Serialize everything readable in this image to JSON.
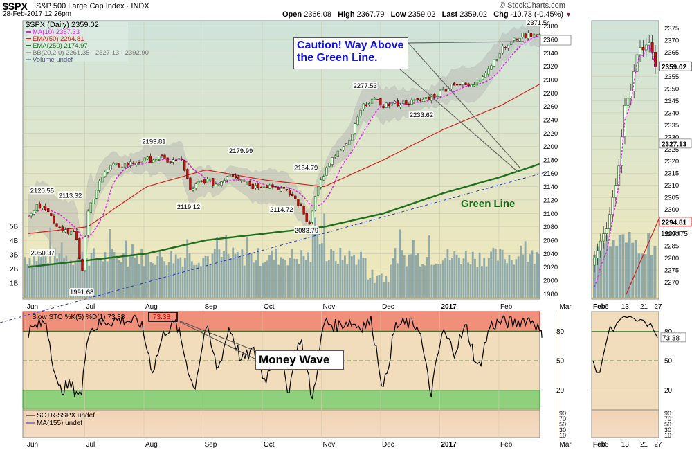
{
  "header": {
    "symbol": "$SPX",
    "description": "S&P 500 Large Cap Index",
    "exchange": "INDX",
    "date_time": "28-Feb-2017 12:26pm",
    "open_label": "Open",
    "open": "2366.08",
    "high_label": "High",
    "high": "2367.79",
    "low_label": "Low",
    "low": "2359.02",
    "last_label": "Last",
    "last": "2359.02",
    "chg_label": "Chg",
    "chg": "-10.73 (-0.45%)",
    "attribution": "© StockCharts.com"
  },
  "legend": {
    "title": "$SPX (Daily) 2359.02",
    "ma10": "MA(10) 2357.33",
    "ema50": "EMA(50) 2294.81",
    "ema250": "EMA(250) 2174.97",
    "bb": "BB(20,2.0) 2261.35 - 2327.13 - 2392.90",
    "volume": "Volume undef"
  },
  "colors": {
    "candle_up": "#1a7a1a",
    "candle_down": "#cc1111",
    "ma10": "#e020e0",
    "ema50": "#d42020",
    "ema250": "#1f6e1f",
    "bb_fill": "#b4b4b4",
    "volume": "#7f9ea6",
    "upper_panel_bg": "#eee8bc",
    "sto_upper_band": "#f0907a",
    "sto_lower_band": "#8ed07c",
    "sto_bg": "#f1dcbb"
  },
  "annotations": {
    "caution": [
      "Caution! Way Above",
      "the Green Line."
    ],
    "green_line": "Green Line",
    "money_wave": "Money Wave"
  },
  "price_labels": [
    "2371.54",
    "2277.53",
    "2233.62",
    "2193.81",
    "2179.99",
    "2154.79",
    "2120.55",
    "2113.32",
    "2119.12",
    "2114.72",
    "2083.79",
    "2050.37",
    "1991.68"
  ],
  "price_label_values": [
    2371.54,
    2277.53,
    2233.62,
    2193.81,
    2179.99,
    2154.79,
    2120.55,
    2113.32,
    2119.12,
    2114.72,
    2083.79,
    2050.37,
    1991.68
  ],
  "price_label_months": [
    8.62,
    5.69,
    6.64,
    2.12,
    3.59,
    4.69,
    0.23,
    0.71,
    2.71,
    4.28,
    4.7,
    0.24,
    0.9
  ],
  "volume_labels": [
    "5B",
    "4B",
    "3B",
    "2B",
    "1B"
  ],
  "volume_label_values": [
    5,
    4,
    3,
    2,
    1
  ],
  "sto": {
    "title": "Slow STO %K(5) %D(1) 73.38",
    "value_box": "73.38",
    "ticks": [
      "80",
      "50",
      "20"
    ],
    "tick_values": [
      80,
      50,
      20
    ],
    "last_value": "73.38"
  },
  "sctr": {
    "title": "SCTR-$SPX undef",
    "ma": "MA(155) undef",
    "ticks": [
      "90",
      "70",
      "50",
      "30",
      "10"
    ],
    "tick_values": [
      90,
      70,
      50,
      30,
      10
    ]
  },
  "side_panel": {
    "last_tag": "2359.02",
    "bb_upper_tag": "2327.13",
    "ema50_tag": "2294.81",
    "volume_tag": "1907475",
    "x_labels": [
      "Feb",
      "6",
      "13",
      "21",
      "27"
    ],
    "x_days": [
      1,
      6,
      13,
      21,
      27
    ],
    "sto_last": "73.38",
    "sto_ticks": [
      "80",
      "50",
      "20"
    ],
    "sto_tick_values": [
      80,
      50,
      20
    ],
    "sctr_ticks": [
      "90",
      "70",
      "50",
      "30",
      "10"
    ],
    "sctr_tick_values": [
      90,
      70,
      50,
      30,
      10
    ]
  },
  "chart_data": [
    {
      "type": "line",
      "name": "Candlestick price chart",
      "title": "$SPX (Daily) 2359.02",
      "x_axis_labels": [
        "Jun",
        "Jul",
        "Aug",
        "Sep",
        "Oct",
        "Nov",
        "Dec",
        "2017",
        "Feb",
        "Mar"
      ],
      "x_month_index": [
        0,
        1,
        2,
        3,
        4,
        5,
        6,
        7,
        8,
        9
      ],
      "y_ticks": [
        1980,
        2000,
        2020,
        2040,
        2060,
        2080,
        2100,
        2120,
        2140,
        2160,
        2180,
        2200,
        2220,
        2240,
        2260,
        2280,
        2300,
        2320,
        2340,
        2360,
        2380
      ],
      "ylim": [
        1972,
        2388
      ],
      "grid": true,
      "series": [
        {
          "name": "$SPX close (approx.)",
          "x": [
            0,
            0.24,
            0.5,
            0.8,
            0.9,
            1.0,
            1.2,
            1.4,
            1.7,
            2.0,
            2.2,
            2.4,
            2.6,
            2.75,
            2.85,
            3.0,
            3.2,
            3.4,
            3.6,
            3.8,
            4.0,
            4.2,
            4.45,
            4.6,
            4.7,
            4.75,
            4.85,
            5.0,
            5.2,
            5.4,
            5.6,
            5.7,
            5.8,
            6.0,
            6.3,
            6.6,
            6.9,
            7.2,
            7.5,
            7.8,
            8.0,
            8.3,
            8.5,
            8.62,
            8.68
          ],
          "values": [
            2100,
            2115,
            2080,
            2070,
            2005,
            2100,
            2150,
            2170,
            2174,
            2180,
            2183,
            2178,
            2180,
            2128,
            2145,
            2150,
            2143,
            2160,
            2153,
            2140,
            2143,
            2140,
            2128,
            2110,
            2090,
            2085,
            2130,
            2160,
            2190,
            2202,
            2250,
            2265,
            2270,
            2262,
            2265,
            2268,
            2278,
            2295,
            2290,
            2320,
            2345,
            2365,
            2368,
            2371,
            2359
          ]
        },
        {
          "name": "EMA(250)",
          "x": [
            0,
            1,
            2,
            3,
            4,
            5,
            6,
            7,
            8,
            8.68
          ],
          "values": [
            2020,
            2030,
            2040,
            2060,
            2070,
            2080,
            2100,
            2130,
            2155,
            2175
          ]
        },
        {
          "name": "EMA(50)",
          "x": [
            0,
            1,
            2,
            3,
            4,
            5,
            6,
            7,
            8,
            8.68
          ],
          "values": [
            2070,
            2080,
            2140,
            2165,
            2150,
            2140,
            2180,
            2225,
            2262,
            2295
          ]
        }
      ]
    },
    {
      "type": "line",
      "name": "Slow STO %K(5) %D(1)",
      "title": "Slow STO %K(5) %D(1) 73.38",
      "ylim": [
        0,
        100
      ],
      "y_ticks": [
        20,
        50,
        80
      ],
      "bands": [
        [
          80,
          100
        ],
        [
          0,
          20
        ]
      ],
      "series": [
        {
          "name": "%K",
          "x": [
            0,
            0.3,
            0.5,
            0.7,
            0.9,
            1.0,
            1.3,
            1.6,
            1.9,
            2.1,
            2.3,
            2.5,
            2.8,
            3.0,
            3.2,
            3.4,
            3.6,
            3.8,
            4.0,
            4.2,
            4.4,
            4.6,
            4.8,
            5.0,
            5.2,
            5.4,
            5.6,
            5.8,
            6.0,
            6.2,
            6.4,
            6.6,
            6.8,
            7.0,
            7.2,
            7.4,
            7.6,
            7.8,
            8.0,
            8.2,
            8.4,
            8.55,
            8.68
          ],
          "values": [
            80,
            90,
            20,
            25,
            15,
            80,
            90,
            92,
            88,
            40,
            80,
            88,
            20,
            85,
            40,
            85,
            50,
            60,
            30,
            60,
            20,
            75,
            10,
            90,
            85,
            90,
            85,
            90,
            20,
            85,
            88,
            85,
            15,
            80,
            60,
            85,
            40,
            85,
            90,
            88,
            92,
            91,
            73.38
          ]
        }
      ]
    }
  ]
}
